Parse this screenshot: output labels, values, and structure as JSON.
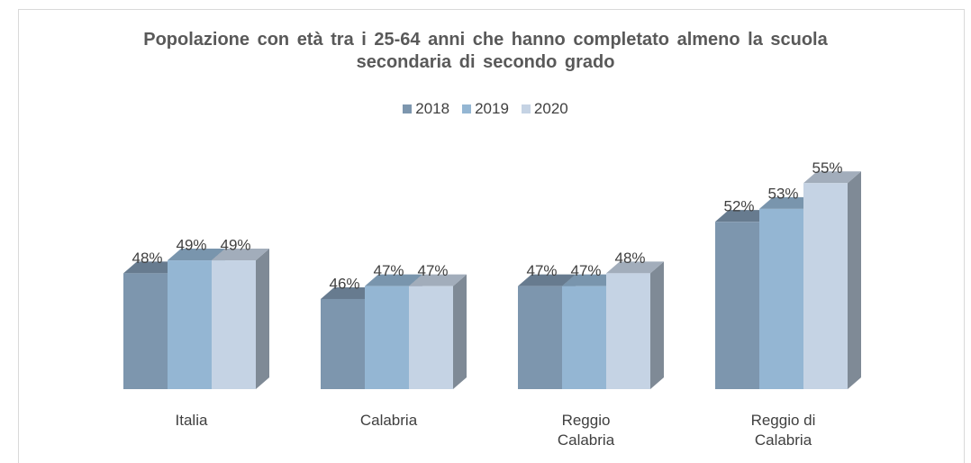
{
  "chart_data": {
    "type": "bar3d",
    "title": "Popolazione con età tra i 25-64 anni che hanno completato almeno la scuola secondaria di secondo grado",
    "categories": [
      "Italia",
      "Calabria",
      "Reggio Calabria",
      "Reggio di Calabria"
    ],
    "series": [
      {
        "name": "2018",
        "color": "#7d96ae",
        "values": [
          48,
          46,
          47,
          52
        ],
        "value_labels": [
          "48%",
          "46%",
          "47%",
          "52%"
        ]
      },
      {
        "name": "2019",
        "color": "#94b6d3",
        "values": [
          49,
          47,
          47,
          53
        ],
        "value_labels": [
          "49%",
          "47%",
          "47%",
          "53%"
        ]
      },
      {
        "name": "2020",
        "color": "#c5d3e4",
        "values": [
          49,
          47,
          48,
          55
        ],
        "value_labels": [
          "49%",
          "47%",
          "48%",
          "55%"
        ]
      }
    ],
    "ylim": [
      39,
      56
    ],
    "legend": "top"
  }
}
